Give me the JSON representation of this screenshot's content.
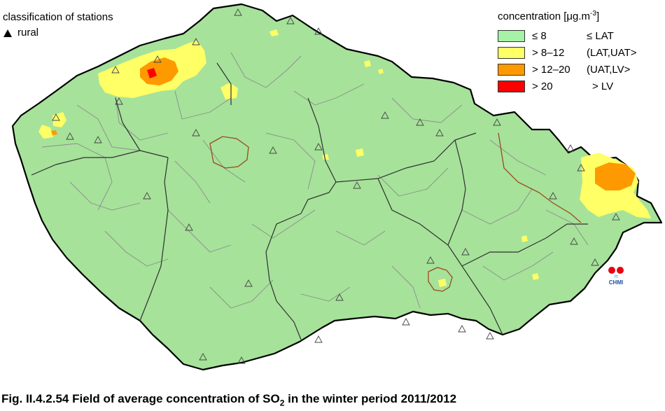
{
  "left_legend": {
    "title": "classification of stations",
    "station_type": "rural"
  },
  "right_legend": {
    "title_prefix": "concentration [μg.m",
    "title_exp": "-3",
    "title_suffix": "]",
    "items": [
      {
        "range": "≤ 8",
        "class": "≤ LAT",
        "color": "#a6f2a6"
      },
      {
        "range": "> 8–12",
        "class": "(LAT,UAT>",
        "color": "#ffff66"
      },
      {
        "range": "> 12–20",
        "class": "(UAT,LV>",
        "color": "#ff9900"
      },
      {
        "range": "> 20",
        "class": "> LV",
        "color": "#ff0000"
      }
    ]
  },
  "logo": {
    "text": "CHMI"
  },
  "caption": {
    "prefix": "Fig. II.4.2.54  Field of average concentration of SO",
    "sub": "2",
    "suffix": " in the winter period 2011/2012"
  },
  "colors": {
    "map_base": "#a6e29a",
    "border": "#000000",
    "region_border": "#303030",
    "district_border": "#8c8c8c",
    "city_border": "#9a4a1e"
  },
  "icons": {
    "station": "triangle-outline-icon",
    "legend_station": "triangle-filled-icon"
  }
}
